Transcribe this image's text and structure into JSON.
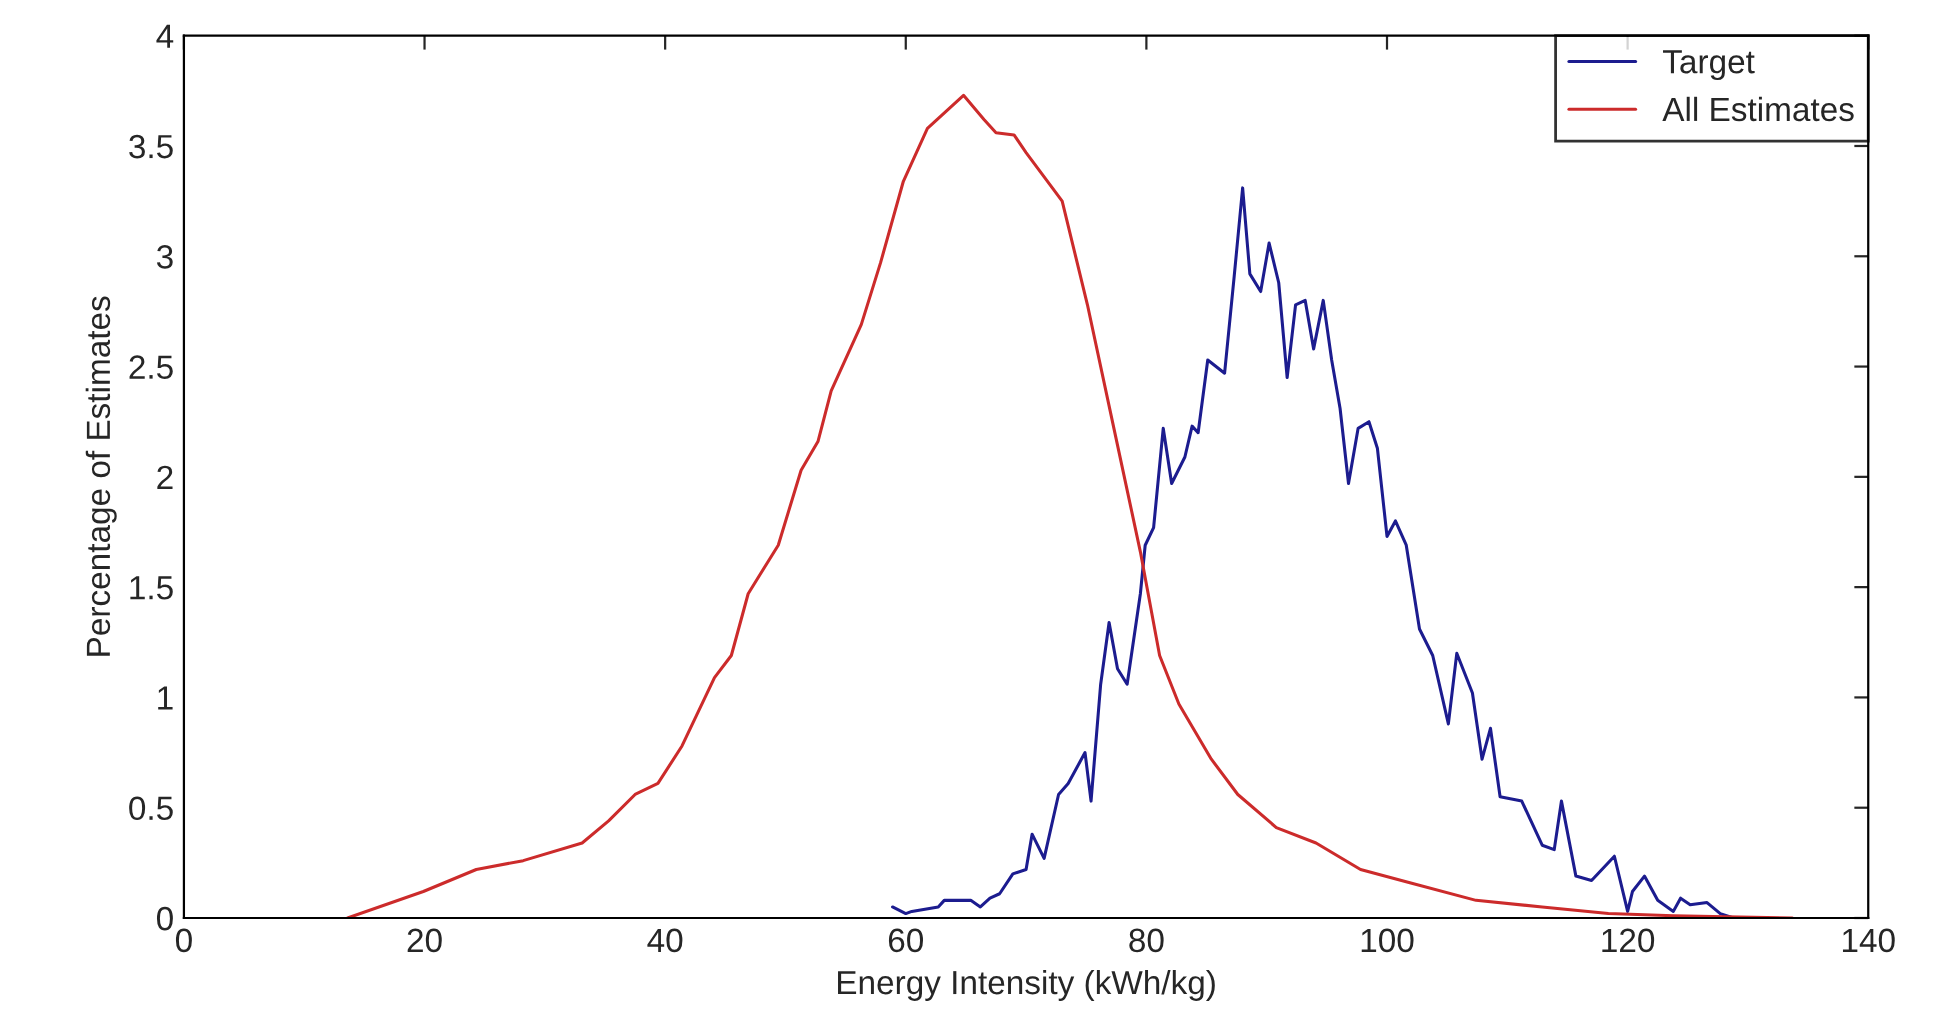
{
  "chart_data": {
    "type": "line",
    "xlabel": "Energy Intensity (kWh/kg)",
    "ylabel": "Percentage of Estimates",
    "xlim": [
      0,
      140
    ],
    "xticks": [
      0,
      20,
      40,
      60,
      80,
      100,
      120,
      140
    ],
    "ylim": [
      0,
      4
    ],
    "yticks": [
      0,
      0.5,
      1,
      1.5,
      2,
      2.5,
      3,
      3.5,
      4
    ],
    "grid": false,
    "legend": "top right",
    "marker": "none",
    "line_style": "solid",
    "series": [
      {
        "name": "Target",
        "color": "#1c1c8f",
        "x": [
          58.9,
          60,
          60.5,
          62.7,
          63.2,
          65.4,
          66.2,
          67,
          67.8,
          68.9,
          70,
          70.5,
          71.5,
          72.7,
          73.5,
          74.9,
          75.4,
          76.2,
          76.9,
          77.6,
          78.4,
          79.5,
          79.9,
          80.6,
          81.4,
          82.1,
          83.2,
          83.8,
          84.3,
          85.1,
          86.5,
          87.3,
          88,
          88.6,
          89.5,
          90.2,
          91,
          91.7,
          92.4,
          93.2,
          93.9,
          94.7,
          95.4,
          96.1,
          96.8,
          97.6,
          98.5,
          99.2,
          100,
          100.7,
          101.6,
          102.7,
          103.8,
          105.1,
          105.8,
          107.1,
          107.9,
          108.6,
          109.4,
          111.2,
          112.9,
          113.9,
          114.5,
          115.7,
          117,
          118.9,
          120,
          120.4,
          121.4,
          122.5,
          123.8,
          124.4,
          125.2,
          126.6,
          127.7,
          128.8
        ],
        "values": [
          0.05,
          0.02,
          0.03,
          0.05,
          0.08,
          0.08,
          0.05,
          0.09,
          0.11,
          0.2,
          0.22,
          0.38,
          0.27,
          0.56,
          0.61,
          0.75,
          0.53,
          1.06,
          1.34,
          1.13,
          1.06,
          1.47,
          1.69,
          1.77,
          2.22,
          1.97,
          2.09,
          2.23,
          2.2,
          2.53,
          2.47,
          2.91,
          3.31,
          2.92,
          2.84,
          3.06,
          2.88,
          2.45,
          2.78,
          2.8,
          2.58,
          2.8,
          2.53,
          2.31,
          1.97,
          2.22,
          2.25,
          2.13,
          1.73,
          1.8,
          1.69,
          1.31,
          1.19,
          0.88,
          1.2,
          1.02,
          0.72,
          0.86,
          0.55,
          0.53,
          0.33,
          0.31,
          0.53,
          0.19,
          0.17,
          0.28,
          0.03,
          0.12,
          0.19,
          0.08,
          0.03,
          0.09,
          0.06,
          0.07,
          0.02,
          0
        ]
      },
      {
        "name": "All Estimates",
        "color": "#cc2b2b",
        "x": [
          13.6,
          19.9,
          24.3,
          28.2,
          33.1,
          35.3,
          37.5,
          39.4,
          41.4,
          44.1,
          45.5,
          46.9,
          49.4,
          51.3,
          52.7,
          53.8,
          56.3,
          57.9,
          59.8,
          61.8,
          64.8,
          66.5,
          67.5,
          69,
          70,
          73,
          75.1,
          77.3,
          79.5,
          81.1,
          82.7,
          85.4,
          87.6,
          90.8,
          94.1,
          97.8,
          101.9,
          107.4,
          112.9,
          118.4,
          123.8,
          133.7
        ],
        "values": [
          0,
          0.12,
          0.22,
          0.26,
          0.34,
          0.44,
          0.56,
          0.61,
          0.78,
          1.09,
          1.19,
          1.47,
          1.69,
          2.03,
          2.16,
          2.39,
          2.69,
          2.97,
          3.34,
          3.58,
          3.73,
          3.62,
          3.56,
          3.55,
          3.47,
          3.25,
          2.78,
          2.22,
          1.66,
          1.19,
          0.97,
          0.72,
          0.56,
          0.41,
          0.34,
          0.22,
          0.16,
          0.08,
          0.05,
          0.02,
          0.01,
          0
        ]
      }
    ]
  }
}
